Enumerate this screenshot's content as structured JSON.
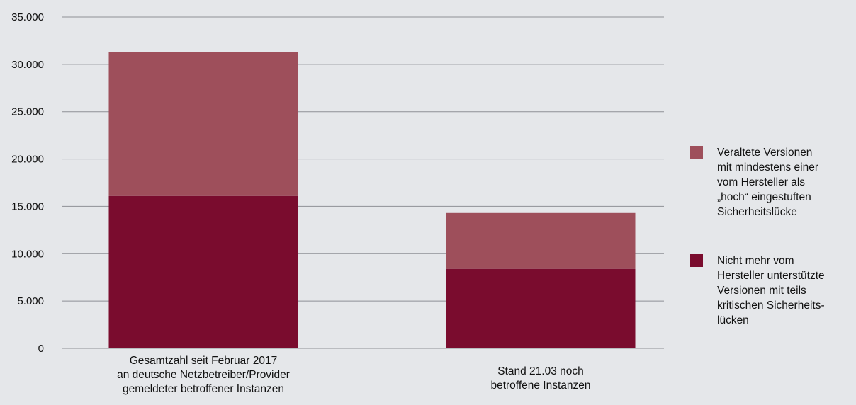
{
  "chart_data": {
    "type": "bar",
    "stacked": true,
    "categories": [
      "Gesamtzahl seit Februar 2017\nan deutsche Netzbetreiber/Provider\ngemeldeter betroffener Instanzen",
      "Stand 21.03 noch\nbetroffene Instanzen"
    ],
    "series": [
      {
        "name": "Nicht mehr vom\nHersteller unterstützte\nVersionen mit teils\nkritischen Sicherheits-\nlücken",
        "values": [
          16100,
          8400
        ],
        "color": "#7a0c2e"
      },
      {
        "name": "Veraltete Versionen\nmit mindestens einer\nvom Hersteller als\n„hoch“ eingestuften\nSicherheitslücke",
        "values": [
          15200,
          5900
        ],
        "color": "#9e4f5b"
      }
    ],
    "ylim": [
      0,
      35000
    ],
    "yticks": [
      0,
      5000,
      10000,
      15000,
      20000,
      25000,
      30000,
      35000
    ],
    "ytick_labels": [
      "0",
      "5.000",
      "10.000",
      "15.000",
      "20.000",
      "25.000",
      "30.000",
      "35.000"
    ],
    "grid": true,
    "legend_position": "right",
    "title": "",
    "xlabel": "",
    "ylabel": ""
  },
  "colors": {
    "background": "#e5e7ea",
    "grid": "#8e9096",
    "text": "#111111"
  }
}
